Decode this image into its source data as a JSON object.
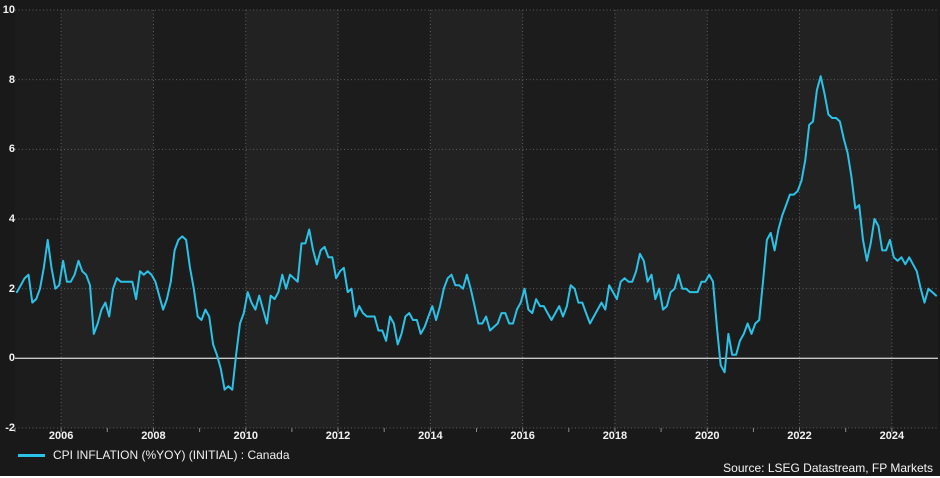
{
  "footer": {
    "source_note": "Source: LSEG Datastream, FP Markets"
  },
  "chart_data": {
    "type": "line",
    "title": "",
    "frequency": "monthly",
    "x_start_year": 2005,
    "xlim": [
      2005,
      2025
    ],
    "ylim": [
      -2,
      10
    ],
    "x_tick_years": [
      2006,
      2008,
      2010,
      2012,
      2014,
      2016,
      2018,
      2020,
      2022,
      2024
    ],
    "y_ticks": [
      10,
      8,
      6,
      4,
      2,
      0,
      -2
    ],
    "grid": "dotted horizontal lines at y ticks, dotted vertical lines every 2 years, solid line at 0",
    "legend_position": "bottom-left",
    "colors": {
      "background": "#191919",
      "plot_background": "#1c1c1c",
      "band_light": "#222222",
      "gridline": "#5f5f5f",
      "zero_line": "#c8c8c8",
      "year_tick": "#8a8a8a",
      "line": "#2bc2e8",
      "tick_text": "#f2f2f2",
      "bottom_border": "#ffffff"
    },
    "series": [
      {
        "name": "CPI INFLATION (%YOY) (INITIAL) : Canada",
        "color": "#2bc2e8",
        "values": [
          1.9,
          2.1,
          2.3,
          2.4,
          1.6,
          1.7,
          2.0,
          2.6,
          3.4,
          2.6,
          2.0,
          2.1,
          2.8,
          2.2,
          2.2,
          2.4,
          2.8,
          2.5,
          2.4,
          2.1,
          0.7,
          1.0,
          1.4,
          1.6,
          1.2,
          2.0,
          2.3,
          2.2,
          2.2,
          2.2,
          2.2,
          1.7,
          2.5,
          2.4,
          2.5,
          2.4,
          2.2,
          1.8,
          1.4,
          1.7,
          2.2,
          3.1,
          3.4,
          3.5,
          3.4,
          2.6,
          2.0,
          1.2,
          1.1,
          1.4,
          1.2,
          0.4,
          0.1,
          -0.3,
          -0.9,
          -0.8,
          -0.9,
          0.1,
          1.0,
          1.3,
          1.9,
          1.6,
          1.4,
          1.8,
          1.4,
          1.0,
          1.8,
          1.7,
          1.9,
          2.4,
          2.0,
          2.4,
          2.3,
          2.2,
          3.3,
          3.3,
          3.7,
          3.1,
          2.7,
          3.1,
          3.2,
          2.9,
          2.9,
          2.3,
          2.5,
          2.6,
          1.9,
          2.0,
          1.2,
          1.5,
          1.3,
          1.2,
          1.2,
          1.2,
          0.8,
          0.8,
          0.5,
          1.2,
          1.0,
          0.4,
          0.7,
          1.2,
          1.3,
          1.1,
          1.1,
          0.7,
          0.9,
          1.2,
          1.5,
          1.1,
          1.5,
          2.0,
          2.3,
          2.4,
          2.1,
          2.1,
          2.0,
          2.4,
          2.0,
          1.5,
          1.0,
          1.0,
          1.2,
          0.8,
          0.9,
          1.0,
          1.3,
          1.3,
          1.0,
          1.0,
          1.4,
          1.6,
          2.0,
          1.4,
          1.3,
          1.7,
          1.5,
          1.5,
          1.3,
          1.1,
          1.3,
          1.5,
          1.2,
          1.5,
          2.1,
          2.0,
          1.6,
          1.6,
          1.3,
          1.0,
          1.2,
          1.4,
          1.6,
          1.4,
          2.1,
          1.9,
          1.7,
          2.2,
          2.3,
          2.2,
          2.2,
          2.5,
          3.0,
          2.8,
          2.2,
          2.4,
          1.7,
          2.0,
          1.4,
          1.5,
          1.9,
          2.0,
          2.4,
          2.0,
          2.0,
          1.9,
          1.9,
          1.9,
          2.2,
          2.2,
          2.4,
          2.2,
          0.9,
          -0.2,
          -0.4,
          0.7,
          0.1,
          0.1,
          0.5,
          0.7,
          1.0,
          0.7,
          1.0,
          1.1,
          2.2,
          3.4,
          3.6,
          3.1,
          3.7,
          4.1,
          4.4,
          4.7,
          4.7,
          4.8,
          5.1,
          5.7,
          6.7,
          6.8,
          7.7,
          8.1,
          7.6,
          7.0,
          6.9,
          6.9,
          6.8,
          6.3,
          5.9,
          5.2,
          4.3,
          4.4,
          3.4,
          2.8,
          3.3,
          4.0,
          3.8,
          3.1,
          3.1,
          3.4,
          2.9,
          2.8,
          2.9,
          2.7,
          2.9,
          2.7,
          2.5,
          2.0,
          1.6,
          2.0,
          1.9,
          1.8
        ]
      }
    ]
  }
}
